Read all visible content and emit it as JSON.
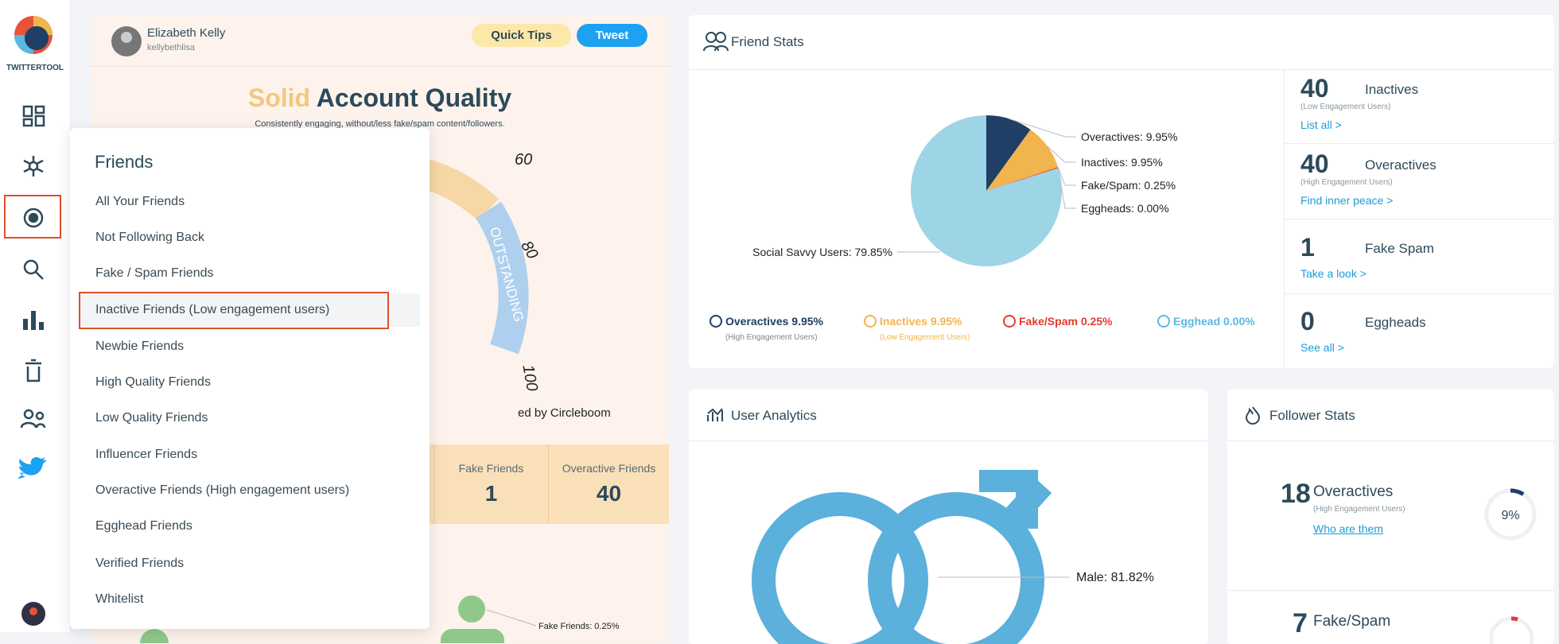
{
  "sidebar": {
    "brand": "TWITTERTOOL"
  },
  "profile": {
    "name": "Elizabeth Kelly",
    "handle": "kellybethlisa",
    "quick_tips": "Quick Tips",
    "tweet": "Tweet"
  },
  "quality": {
    "title_accent": "Solid",
    "title_rest": "Account Quality",
    "subtitle": "Consistently engaging, without/less fake/spam content/followers.",
    "gauge_ticks": [
      "60",
      "80",
      "100"
    ],
    "gauge_band": "OUTSTANDING",
    "footer": "ed by Circleboom",
    "stats": [
      {
        "label": "Fake Friends",
        "value": "1"
      },
      {
        "label": "Overactive Friends",
        "value": "40"
      }
    ],
    "bottom_label": "Fake Friends: 0.25%"
  },
  "menu": {
    "title": "Friends",
    "items": [
      "All Your Friends",
      "Not Following Back",
      "Fake / Spam Friends",
      "Inactive Friends (Low engagement users)",
      "Newbie Friends",
      "High Quality Friends",
      "Low Quality Friends",
      "Influencer Friends",
      "Overactive Friends (High engagement users)",
      "Egghead Friends",
      "Verified Friends",
      "Whitelist"
    ],
    "selected": 3
  },
  "friend_stats": {
    "title": "Friend Stats",
    "pie": [
      {
        "label": "Overactives: 9.95%",
        "value": 9.95,
        "color": "#1f3f66"
      },
      {
        "label": "Inactives: 9.95%",
        "value": 9.95,
        "color": "#f2b44e"
      },
      {
        "label": "Fake/Spam: 0.25%",
        "value": 0.25,
        "color": "#e8523a"
      },
      {
        "label": "Eggheads: 0.00%",
        "value": 0,
        "color": "#5bb8e0"
      },
      {
        "label": "Social Savvy Users: 79.85%",
        "value": 79.85,
        "color": "#9dd4e6"
      }
    ],
    "legend": [
      {
        "label": "Overactives 9.95%",
        "sub": "(High Engagement Users)",
        "color": "#1f3f66"
      },
      {
        "label": "Inactives 9.95%",
        "sub": "(Low Engagement Users)",
        "color": "#f2b44e"
      },
      {
        "label": "Fake/Spam 0.25%",
        "sub": null,
        "color": "#e33b2e"
      },
      {
        "label": "Egghead 0.00%",
        "sub": null,
        "color": "#5bb8e0"
      }
    ],
    "summary": [
      {
        "count": "40",
        "label": "Inactives",
        "sub": "(Low Engagement Users)",
        "link": "List all >"
      },
      {
        "count": "40",
        "label": "Overactives",
        "sub": "(High Engagement Users)",
        "link": "Find inner peace >"
      },
      {
        "count": "1",
        "label": "Fake Spam",
        "sub": null,
        "link": "Take a look >"
      },
      {
        "count": "0",
        "label": "Eggheads",
        "sub": null,
        "link": "See all >"
      }
    ]
  },
  "user_analytics": {
    "title": "User Analytics",
    "male_label": "Male: 81.82%"
  },
  "follower_stats": {
    "title": "Follower Stats",
    "rows": [
      {
        "count": "18",
        "label": "Overactives",
        "sub": "(High Engagement Users)",
        "link": "Who are them",
        "percent": 9,
        "percent_label": "9%"
      },
      {
        "count": "7",
        "label": "Fake/Spam"
      }
    ]
  }
}
